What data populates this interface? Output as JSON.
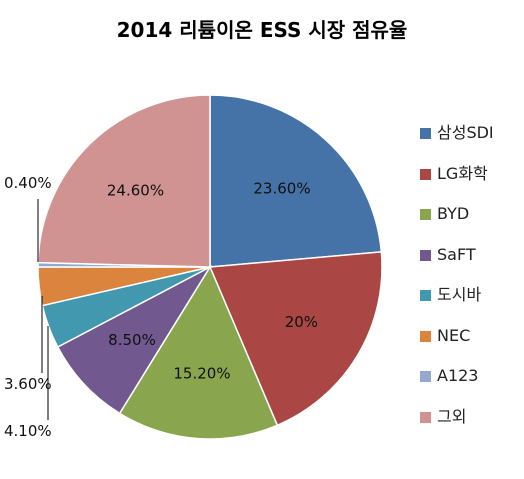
{
  "chart_data": {
    "type": "pie",
    "title": "2014 리튬이온 ESS 시장 점유율",
    "slices": [
      {
        "name": "삼성SDI",
        "value": 23.6,
        "label": "23.60%",
        "color": "#4572a7"
      },
      {
        "name": "LG화학",
        "value": 20.0,
        "label": "20%",
        "color": "#aa4643"
      },
      {
        "name": "BYD",
        "value": 15.2,
        "label": "15.20%",
        "color": "#89a54e"
      },
      {
        "name": "SaFT",
        "value": 8.5,
        "label": "8.50%",
        "color": "#71588f"
      },
      {
        "name": "도시바",
        "value": 4.1,
        "label": "4.10%",
        "color": "#4198af"
      },
      {
        "name": "NEC",
        "value": 3.6,
        "label": "3.60%",
        "color": "#db843d"
      },
      {
        "name": "A123",
        "value": 0.4,
        "label": "0.40%",
        "color": "#93a9cf"
      },
      {
        "name": "그외",
        "value": 24.6,
        "label": "24.60%",
        "color": "#d19392"
      }
    ],
    "legend_position": "right"
  }
}
